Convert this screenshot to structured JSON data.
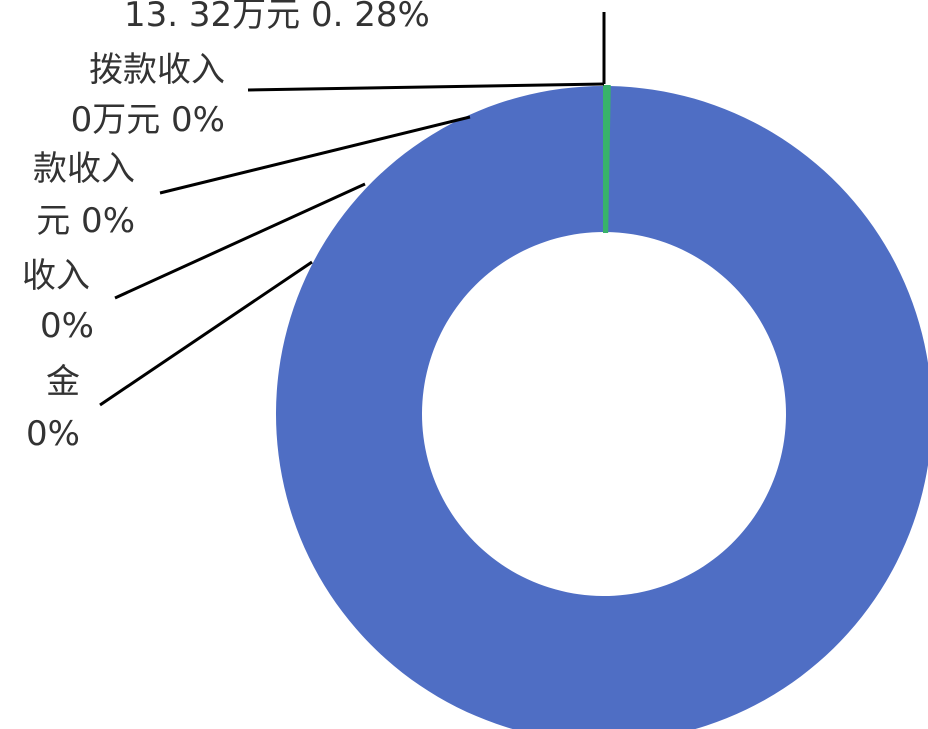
{
  "chart_data": {
    "type": "pie",
    "variant": "donut",
    "colors": {
      "main_slice": "#4f6ec4",
      "thin_slice": "#38b36a",
      "leader": "#000000",
      "label_text": "#333333",
      "background": "#ffffff"
    },
    "series": [
      {
        "values": [
          99.72,
          0.28,
          0,
          0,
          0,
          0
        ]
      }
    ],
    "labels": [
      {
        "label_line_1": "",
        "label_line_2": ""
      },
      {
        "label_line_1": "",
        "label_line_2": "13. 32万元  0. 28%"
      },
      {
        "label_line_1": "拨款收入",
        "label_line_2": "0万元  0%"
      },
      {
        "label_line_1": "款收入",
        "label_line_2": "元  0%"
      },
      {
        "label_line_1": "收入",
        "label_line_2": "0%"
      },
      {
        "label_line_1": "金",
        "label_line_2": "0%"
      }
    ]
  }
}
